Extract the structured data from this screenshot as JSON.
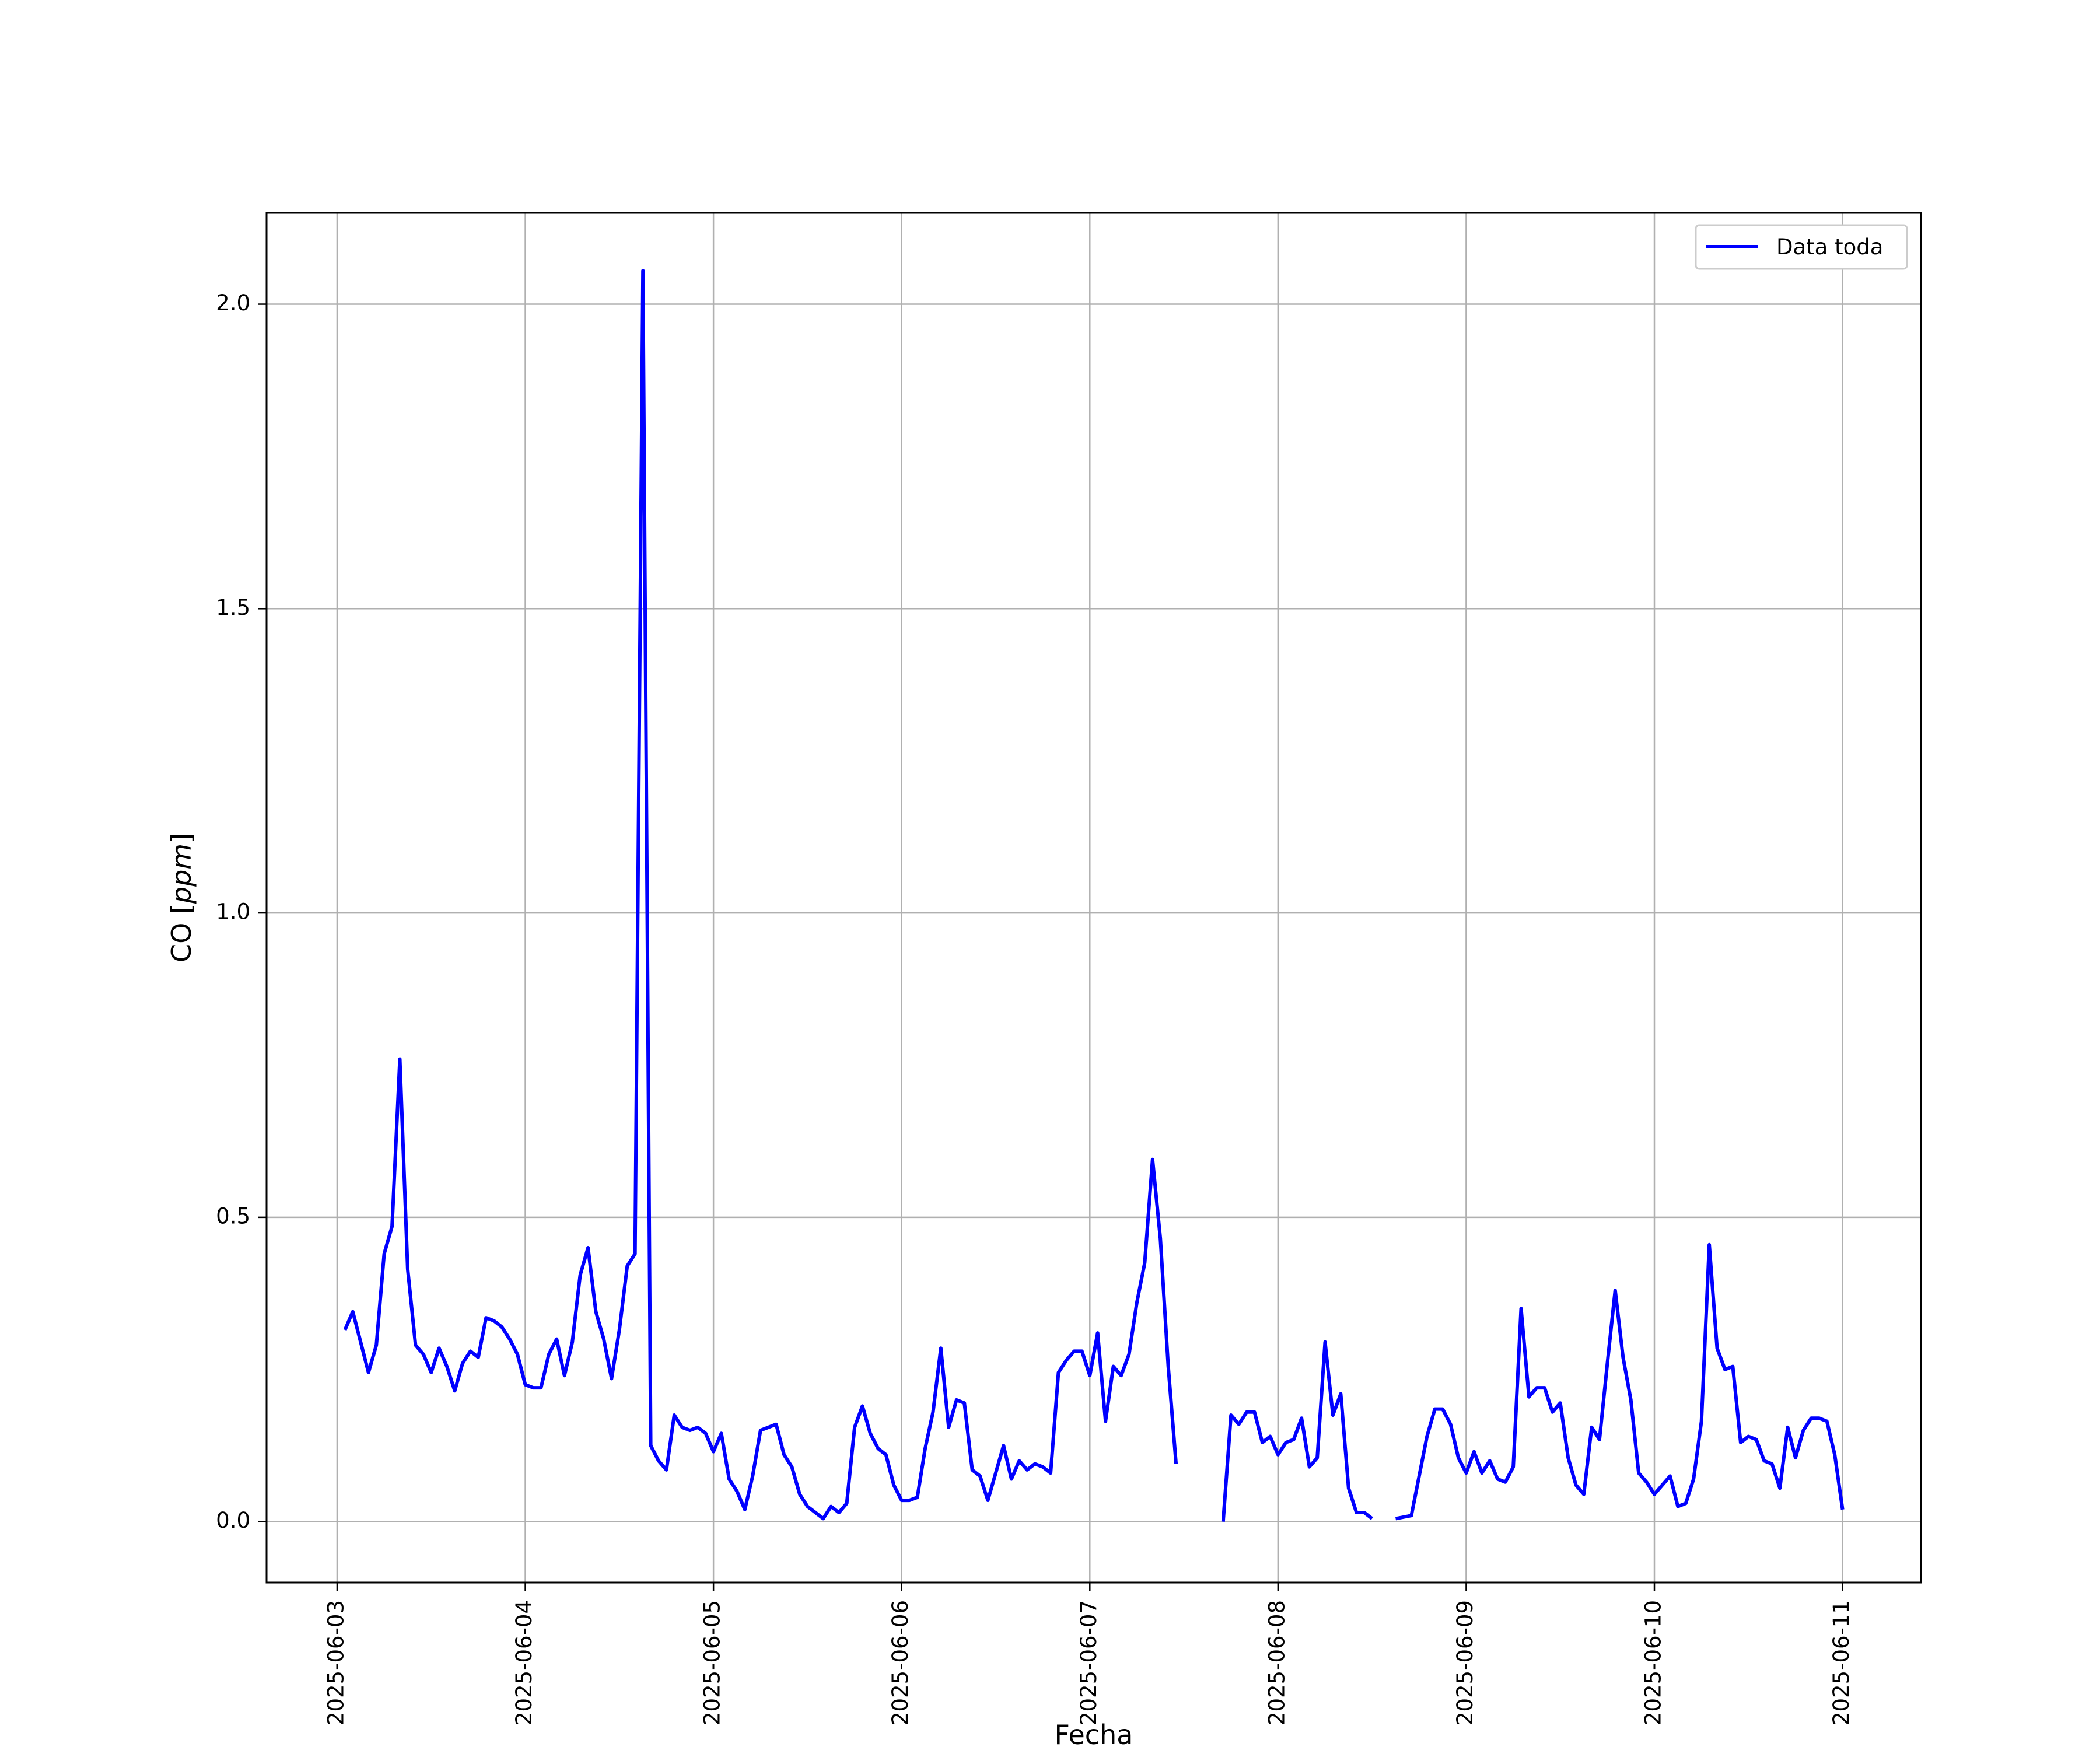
{
  "chart_data": {
    "type": "line",
    "title": "",
    "xlabel": "Fecha",
    "ylabel": "CO [ppm]",
    "ylabel_parts": {
      "base": "CO [",
      "unit": "ppm",
      "close": "]"
    },
    "xlim": [
      "2025-06-02T15:00",
      "2025-06-11T10:00"
    ],
    "ylim": [
      -0.1,
      2.15
    ],
    "x_ticks": [
      "2025-06-03",
      "2025-06-04",
      "2025-06-05",
      "2025-06-06",
      "2025-06-07",
      "2025-06-08",
      "2025-06-09",
      "2025-06-10",
      "2025-06-11"
    ],
    "y_ticks": [
      0.0,
      0.5,
      1.0,
      1.5,
      2.0
    ],
    "y_tick_labels": [
      "0.0",
      "0.5",
      "1.0",
      "1.5",
      "2.0"
    ],
    "grid": true,
    "legend_position": "top-right",
    "series": [
      {
        "name": "Data toda",
        "color": "#0000ff",
        "x": [
          "2025-06-03T01:00",
          "2025-06-03T02:00",
          "2025-06-03T03:00",
          "2025-06-03T04:00",
          "2025-06-03T05:00",
          "2025-06-03T06:00",
          "2025-06-03T07:00",
          "2025-06-03T08:00",
          "2025-06-03T09:00",
          "2025-06-03T10:00",
          "2025-06-03T11:00",
          "2025-06-03T12:00",
          "2025-06-03T13:00",
          "2025-06-03T14:00",
          "2025-06-03T15:00",
          "2025-06-03T16:00",
          "2025-06-03T17:00",
          "2025-06-03T18:00",
          "2025-06-03T19:00",
          "2025-06-03T20:00",
          "2025-06-03T21:00",
          "2025-06-03T22:00",
          "2025-06-03T23:00",
          "2025-06-04T00:00",
          "2025-06-04T01:00",
          "2025-06-04T02:00",
          "2025-06-04T03:00",
          "2025-06-04T04:00",
          "2025-06-04T05:00",
          "2025-06-04T06:00",
          "2025-06-04T07:00",
          "2025-06-04T08:00",
          "2025-06-04T09:00",
          "2025-06-04T10:00",
          "2025-06-04T11:00",
          "2025-06-04T12:00",
          "2025-06-04T13:00",
          "2025-06-04T14:00",
          "2025-06-04T15:00",
          "2025-06-04T16:00",
          "2025-06-04T17:00",
          "2025-06-04T18:00",
          "2025-06-04T19:00",
          "2025-06-04T20:00",
          "2025-06-04T21:00",
          "2025-06-04T22:00",
          "2025-06-04T23:00",
          "2025-06-05T00:00",
          "2025-06-05T01:00",
          "2025-06-05T02:00",
          "2025-06-05T03:00",
          "2025-06-05T04:00",
          "2025-06-05T05:00",
          "2025-06-05T06:00",
          "2025-06-05T07:00",
          "2025-06-05T08:00",
          "2025-06-05T09:00",
          "2025-06-05T10:00",
          "2025-06-05T11:00",
          "2025-06-05T12:00",
          "2025-06-05T13:00",
          "2025-06-05T14:00",
          "2025-06-05T15:00",
          "2025-06-05T16:00",
          "2025-06-05T17:00",
          "2025-06-05T18:00",
          "2025-06-05T19:00",
          "2025-06-05T20:00",
          "2025-06-05T21:00",
          "2025-06-05T22:00",
          "2025-06-05T23:00",
          "2025-06-06T00:00",
          "2025-06-06T01:00",
          "2025-06-06T02:00",
          "2025-06-06T03:00",
          "2025-06-06T04:00",
          "2025-06-06T05:00",
          "2025-06-06T06:00",
          "2025-06-06T07:00",
          "2025-06-06T08:00",
          "2025-06-06T09:00",
          "2025-06-06T10:00",
          "2025-06-06T11:00",
          "2025-06-06T12:00",
          "2025-06-06T13:00",
          "2025-06-06T14:00",
          "2025-06-06T15:00",
          "2025-06-06T16:00",
          "2025-06-06T17:00",
          "2025-06-06T18:00",
          "2025-06-06T19:00",
          "2025-06-06T20:00",
          "2025-06-06T21:00",
          "2025-06-06T22:00",
          "2025-06-06T23:00",
          "2025-06-07T00:00",
          "2025-06-07T01:00",
          "2025-06-07T02:00",
          "2025-06-07T03:00",
          "2025-06-07T04:00",
          "2025-06-07T05:00",
          "2025-06-07T06:00",
          "2025-06-07T07:00",
          "2025-06-07T08:00",
          "2025-06-07T09:00",
          "2025-06-07T10:00",
          "2025-06-07T11:00",
          null,
          "2025-06-07T17:00",
          "2025-06-07T18:00",
          "2025-06-07T19:00",
          "2025-06-07T20:00",
          "2025-06-07T21:00",
          "2025-06-07T22:00",
          "2025-06-07T23:00",
          "2025-06-08T00:00",
          "2025-06-08T01:00",
          "2025-06-08T02:00",
          "2025-06-08T03:00",
          "2025-06-08T04:00",
          "2025-06-08T05:00",
          "2025-06-08T06:00",
          "2025-06-08T07:00",
          "2025-06-08T08:00",
          "2025-06-08T09:00",
          "2025-06-08T10:00",
          "2025-06-08T11:00",
          "2025-06-08T12:00",
          null,
          "2025-06-08T15:00",
          "2025-06-08T17:00",
          "2025-06-08T18:00",
          "2025-06-08T19:00",
          "2025-06-08T20:00",
          "2025-06-08T21:00",
          "2025-06-08T22:00",
          "2025-06-08T23:00",
          "2025-06-09T00:00",
          "2025-06-09T01:00",
          "2025-06-09T02:00",
          "2025-06-09T03:00",
          "2025-06-09T04:00",
          "2025-06-09T05:00",
          "2025-06-09T06:00",
          "2025-06-09T07:00",
          "2025-06-09T08:00",
          "2025-06-09T09:00",
          "2025-06-09T10:00",
          "2025-06-09T11:00",
          "2025-06-09T12:00",
          "2025-06-09T13:00",
          "2025-06-09T14:00",
          "2025-06-09T15:00",
          "2025-06-09T16:00",
          "2025-06-09T17:00",
          "2025-06-09T18:00",
          "2025-06-09T19:00",
          "2025-06-09T20:00",
          "2025-06-09T21:00",
          "2025-06-09T22:00",
          "2025-06-09T23:00",
          "2025-06-10T00:00",
          "2025-06-10T01:00",
          "2025-06-10T02:00",
          "2025-06-10T03:00",
          "2025-06-10T04:00",
          "2025-06-10T05:00",
          "2025-06-10T06:00",
          "2025-06-10T07:00",
          "2025-06-10T08:00",
          "2025-06-10T09:00",
          "2025-06-10T10:00",
          "2025-06-10T11:00",
          "2025-06-10T12:00",
          "2025-06-10T13:00",
          "2025-06-10T14:00",
          "2025-06-10T15:00",
          "2025-06-10T16:00",
          "2025-06-10T17:00",
          "2025-06-10T18:00",
          "2025-06-10T19:00",
          "2025-06-10T20:00",
          "2025-06-10T21:00",
          "2025-06-10T22:00",
          "2025-06-10T23:00",
          "2025-06-11T00:00"
        ],
        "values": [
          0.315,
          0.345,
          0.295,
          0.245,
          0.29,
          0.44,
          0.485,
          0.76,
          0.415,
          0.29,
          0.275,
          0.245,
          0.285,
          0.255,
          0.215,
          0.26,
          0.28,
          0.27,
          0.335,
          0.33,
          0.32,
          0.3,
          0.275,
          0.225,
          0.22,
          0.22,
          0.275,
          0.3,
          0.24,
          0.295,
          0.405,
          0.45,
          0.345,
          0.3,
          0.235,
          0.315,
          0.42,
          0.44,
          2.055,
          0.125,
          0.1,
          0.085,
          0.175,
          0.155,
          0.15,
          0.155,
          0.145,
          0.115,
          0.145,
          0.07,
          0.05,
          0.02,
          0.075,
          0.15,
          0.155,
          0.16,
          0.11,
          0.09,
          0.045,
          0.025,
          0.015,
          0.005,
          0.025,
          0.015,
          0.03,
          0.155,
          0.19,
          0.145,
          0.12,
          0.11,
          0.06,
          0.035,
          0.035,
          0.04,
          0.12,
          0.18,
          0.285,
          0.155,
          0.2,
          0.195,
          0.085,
          0.075,
          0.035,
          0.08,
          0.125,
          0.07,
          0.1,
          0.085,
          0.095,
          0.09,
          0.08,
          0.245,
          0.265,
          0.28,
          0.28,
          0.24,
          0.31,
          0.165,
          0.255,
          0.24,
          0.275,
          0.36,
          0.425,
          0.595,
          0.465,
          0.255,
          0.095,
          null,
          0.0,
          0.175,
          0.16,
          0.18,
          0.18,
          0.13,
          0.14,
          0.11,
          0.13,
          0.135,
          0.17,
          0.09,
          0.105,
          0.295,
          0.175,
          0.21,
          0.055,
          0.015,
          0.015,
          0.005,
          null,
          0.005,
          0.01,
          0.075,
          0.14,
          0.185,
          0.185,
          0.16,
          0.105,
          0.08,
          0.115,
          0.08,
          0.1,
          0.07,
          0.065,
          0.09,
          0.35,
          0.205,
          0.22,
          0.22,
          0.18,
          0.195,
          0.105,
          0.06,
          0.045,
          0.155,
          0.135,
          0.26,
          0.38,
          0.27,
          0.2,
          0.08,
          0.065,
          0.045,
          0.06,
          0.075,
          0.025,
          0.03,
          0.07,
          0.165,
          0.455,
          0.285,
          0.25,
          0.255,
          0.13,
          0.14,
          0.135,
          0.1,
          0.095,
          0.055,
          0.155,
          0.105,
          0.15,
          0.17,
          0.17,
          0.165,
          0.11,
          0.02
        ]
      }
    ]
  }
}
